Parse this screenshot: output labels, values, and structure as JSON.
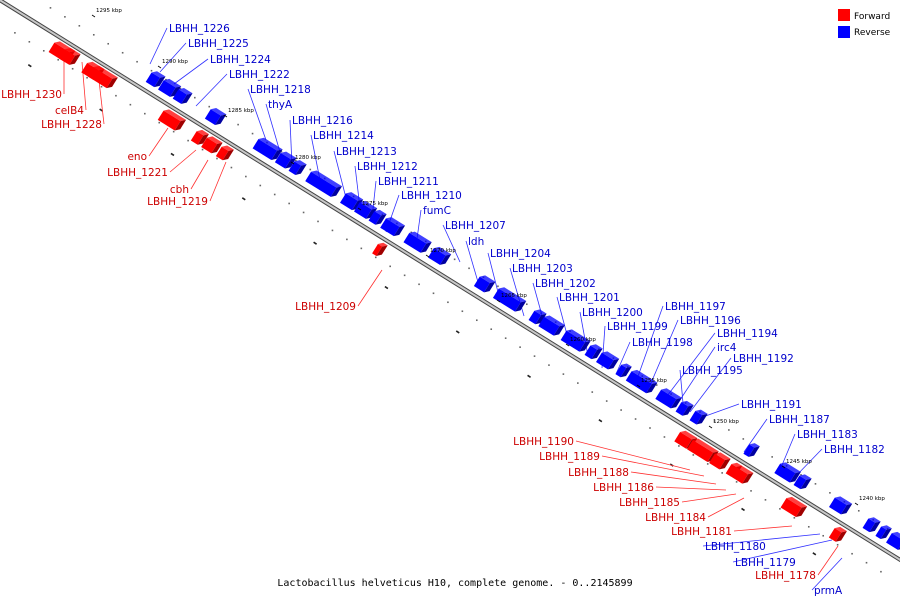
{
  "caption": "Lactobacillus helveticus H10, complete genome. - 0..2145899",
  "legend": [
    {
      "label": "Forward",
      "color": "#ff0000"
    },
    {
      "label": "Reverse",
      "color": "#0000ff"
    }
  ],
  "colors": {
    "forward": "#ff0000",
    "reverse": "#0000ff",
    "forward_label": "#cc0000",
    "reverse_label": "#0000cc",
    "backbone": "#9a9a9a"
  },
  "kbp_markers": [
    "1295 kbp",
    "1290 kbp",
    "1285 kbp",
    "1280 kbp",
    "1275 kbp",
    "1270 kbp",
    "1265 kbp",
    "1260 kbp",
    "1255 kbp",
    "1250 kbp",
    "1245 kbp",
    "1240 kbp"
  ],
  "forward_genes": [
    "LBHH_1230",
    "celB4",
    "LBHH_1228",
    "eno",
    "LBHH_1221",
    "cbh",
    "LBHH_1219",
    "LBHH_1209",
    "LBHH_1190",
    "LBHH_1189",
    "LBHH_1188",
    "LBHH_1186",
    "LBHH_1185",
    "LBHH_1184",
    "LBHH_1181",
    "LBHH_1178"
  ],
  "reverse_genes": [
    "LBHH_1226",
    "LBHH_1225",
    "LBHH_1224",
    "LBHH_1222",
    "LBHH_1218",
    "thyA",
    "LBHH_1216",
    "LBHH_1214",
    "LBHH_1213",
    "LBHH_1212",
    "LBHH_1211",
    "LBHH_1210",
    "fumC",
    "LBHH_1207",
    "ldh",
    "LBHH_1204",
    "LBHH_1203",
    "LBHH_1202",
    "LBHH_1201",
    "LBHH_1200",
    "LBHH_1199",
    "LBHH_1198",
    "LBHH_1197",
    "LBHH_1196",
    "LBHH_1194",
    "irc4",
    "LBHH_1192",
    "LBHH_1195",
    "LBHH_1191",
    "LBHH_1187",
    "LBHH_1183",
    "LBHH_1182",
    "LBHH_1180",
    "LBHH_1179",
    "prmA"
  ]
}
